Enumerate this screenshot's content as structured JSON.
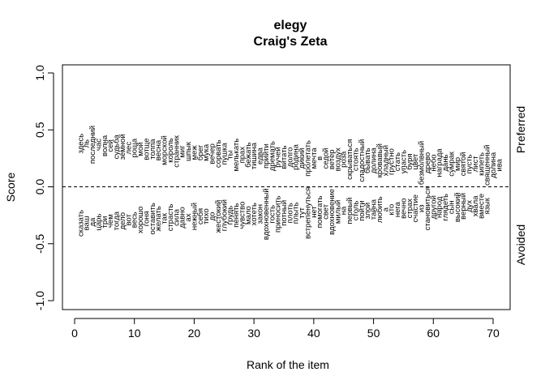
{
  "chart_data": {
    "type": "scatter",
    "title": "elegy",
    "subtitle": "Craig's Zeta",
    "xlabel": "Rank of the item",
    "ylabel": "Score",
    "right_labels": {
      "top": "Preferred",
      "bottom": "Avoided"
    },
    "xlim": [
      0,
      70
    ],
    "ylim": [
      -1.0,
      1.0
    ],
    "xticks": [
      0,
      10,
      20,
      30,
      40,
      50,
      60,
      70
    ],
    "yticks": [
      -1.0,
      -0.5,
      0.0,
      0.5,
      1.0
    ],
    "reference_line": {
      "y": 0,
      "style": "dashed"
    },
    "grid": false,
    "preferred": {
      "words": [
        "здесь",
        "ль",
        "последний",
        "час",
        "волна",
        "сей",
        "судьба",
        "земной",
        "лес",
        "роща",
        "мой",
        "вотще",
        "толпа",
        "весна",
        "морской",
        "король",
        "странник",
        "миг",
        "шпык",
        "меж",
        "брег",
        "мука",
        "вечер",
        "сорвать",
        "пушка",
        "ты",
        "мелькать",
        "прах",
        "бежать",
        "тишина",
        "едва",
        "прийти",
        "дремать",
        "ручей",
        "витать",
        "долго",
        "родина",
        "дикий",
        "пролетать",
        "мечта",
        "в",
        "седой",
        "ветер",
        "воздух",
        "роза",
        "скрываться",
        "стоять",
        "сладостный",
        "бывать",
        "долина",
        "кровавый",
        "хладный",
        "грустно",
        "стать",
        "упасть",
        "буря",
        "цвет",
        "безмолвный",
        "древо",
        "небо",
        "награда",
        "дань",
        "сумрак",
        "мир",
        "святой",
        "пусть",
        "лист",
        "кипеть",
        "священный",
        "долина",
        "ива"
      ],
      "values": [
        0.38,
        0.38,
        0.37,
        0.37,
        0.36,
        0.36,
        0.35,
        0.35,
        0.34,
        0.34,
        0.33,
        0.33,
        0.33,
        0.32,
        0.32,
        0.32,
        0.31,
        0.31,
        0.31,
        0.3,
        0.3,
        0.3,
        0.29,
        0.29,
        0.29,
        0.28,
        0.28,
        0.28,
        0.28,
        0.27,
        0.27,
        0.27,
        0.27,
        0.26,
        0.26,
        0.26,
        0.26,
        0.25,
        0.25,
        0.25,
        0.25,
        0.25,
        0.24,
        0.24,
        0.24,
        0.24,
        0.24,
        0.23,
        0.23,
        0.23,
        0.23,
        0.23,
        0.22,
        0.22,
        0.22,
        0.22,
        0.22,
        0.21,
        0.21,
        0.21,
        0.21,
        0.21,
        0.2,
        0.2,
        0.2,
        0.2,
        0.2,
        0.2,
        0.19,
        0.19,
        0.19
      ]
    },
    "avoided": {
      "words": [
        "сказать",
        "ваш",
        "да",
        "царь",
        "три",
        "чем",
        "тогда",
        "дело",
        "вот",
        "весь",
        "хорошо",
        "гоня",
        "оставить",
        "желать",
        "так",
        "страсть",
        "сила",
        "давно",
        "ах",
        "нежный",
        "себя",
        "тихо",
        "до",
        "жестокий",
        "глубокий",
        "грудь",
        "пенять",
        "чувство",
        "мало",
        "хотеть",
        "закон",
        "вдохновенный",
        "гость",
        "приносить",
        "потный",
        "плоть",
        "плыть",
        "тут",
        "встрепенуться",
        "нет",
        "помогать",
        "свет",
        "вдохновение",
        "милый",
        "на",
        "первый",
        "столь",
        "пойти",
        "злой",
        "тайна",
        "любить",
        "а",
        "кто",
        "нега",
        "вечно",
        "страх",
        "счастие",
        "из",
        "становиться",
        "другой",
        "народ",
        "глядеть",
        "сын",
        "высокий",
        "верный",
        "дух",
        "хвала",
        "вместе",
        "язык"
      ],
      "values": [
        -0.32,
        -0.32,
        -0.31,
        -0.31,
        -0.31,
        -0.3,
        -0.3,
        -0.3,
        -0.29,
        -0.29,
        -0.29,
        -0.28,
        -0.28,
        -0.28,
        -0.28,
        -0.27,
        -0.27,
        -0.27,
        -0.27,
        -0.26,
        -0.26,
        -0.26,
        -0.26,
        -0.26,
        -0.25,
        -0.25,
        -0.25,
        -0.25,
        -0.25,
        -0.24,
        -0.24,
        -0.24,
        -0.24,
        -0.24,
        -0.23,
        -0.23,
        -0.23,
        -0.23,
        -0.23,
        -0.22,
        -0.22,
        -0.22,
        -0.22,
        -0.22,
        -0.21,
        -0.21,
        -0.21,
        -0.21,
        -0.21,
        -0.2,
        -0.2,
        -0.2,
        -0.2,
        -0.2,
        -0.19,
        -0.19,
        -0.19,
        -0.19,
        -0.19,
        -0.18,
        -0.18,
        -0.18,
        -0.18,
        -0.18,
        -0.17,
        -0.17,
        -0.17,
        -0.17,
        -0.17
      ]
    }
  }
}
